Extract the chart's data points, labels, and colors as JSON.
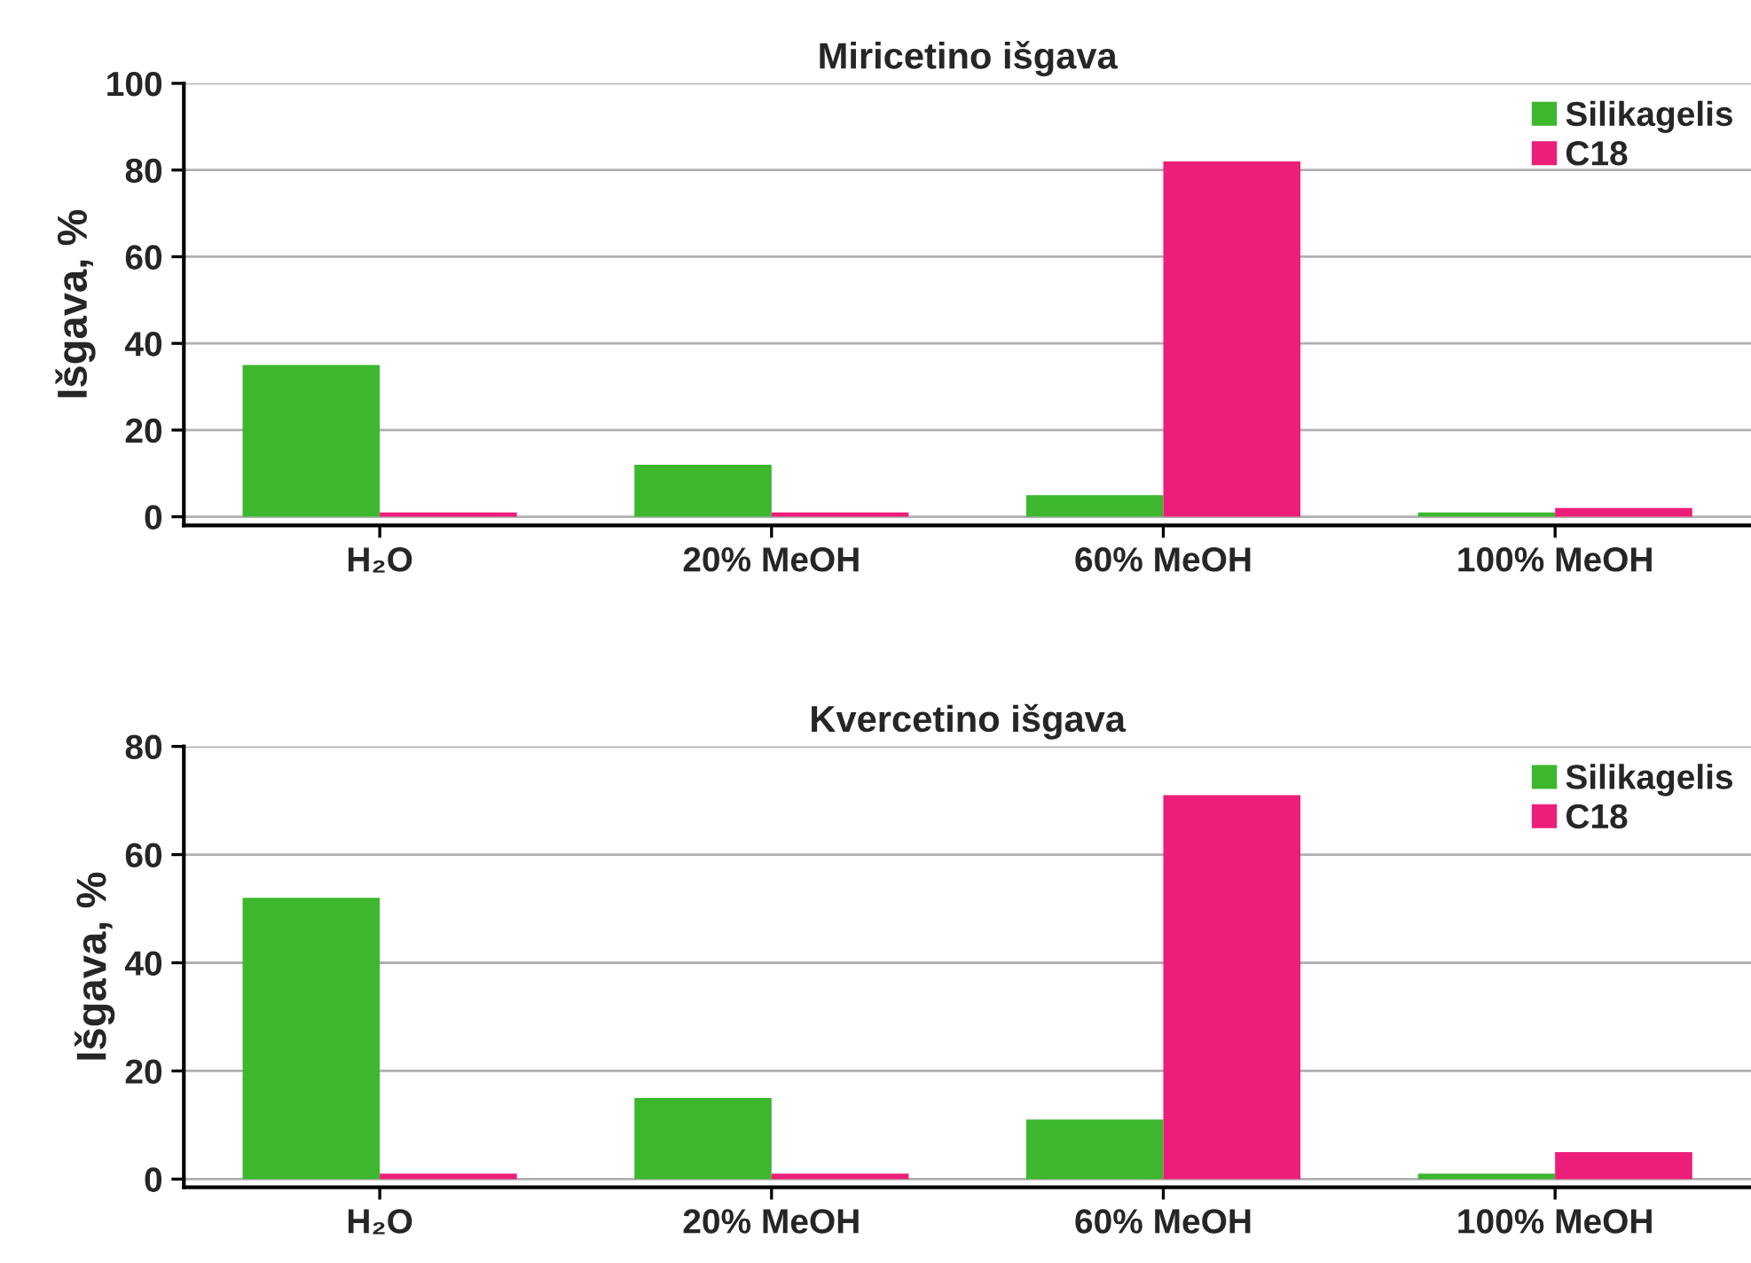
{
  "chart_data": [
    {
      "type": "bar",
      "title": "Miricetino išgava",
      "ylabel": "Išgava, %",
      "categories": [
        "H₂O",
        "20% MeOH",
        "60% MeOH",
        "100% MeOH"
      ],
      "series": [
        {
          "name": "Silikagelis",
          "color": "#3cb72e",
          "values": [
            35,
            12,
            5,
            1
          ]
        },
        {
          "name": "C18",
          "color": "#ed1e79",
          "values": [
            1,
            1,
            82,
            2
          ]
        }
      ],
      "ylim": [
        -2,
        100
      ],
      "yticks": [
        0,
        20,
        40,
        60,
        80,
        100
      ],
      "grid": "y",
      "legend": "top right"
    },
    {
      "type": "bar",
      "title": "Kvercetino išgava",
      "ylabel": "Išgava, %",
      "categories": [
        "H₂O",
        "20% MeOH",
        "60% MeOH",
        "100% MeOH"
      ],
      "series": [
        {
          "name": "Silikagelis",
          "color": "#3cb72e",
          "values": [
            52,
            15,
            11,
            1
          ]
        },
        {
          "name": "C18",
          "color": "#ed1e79",
          "values": [
            1,
            1,
            71,
            5
          ]
        }
      ],
      "ylim": [
        -1.5,
        80
      ],
      "yticks": [
        0,
        20,
        40,
        60,
        80
      ],
      "grid": "y",
      "legend": "top right"
    }
  ]
}
